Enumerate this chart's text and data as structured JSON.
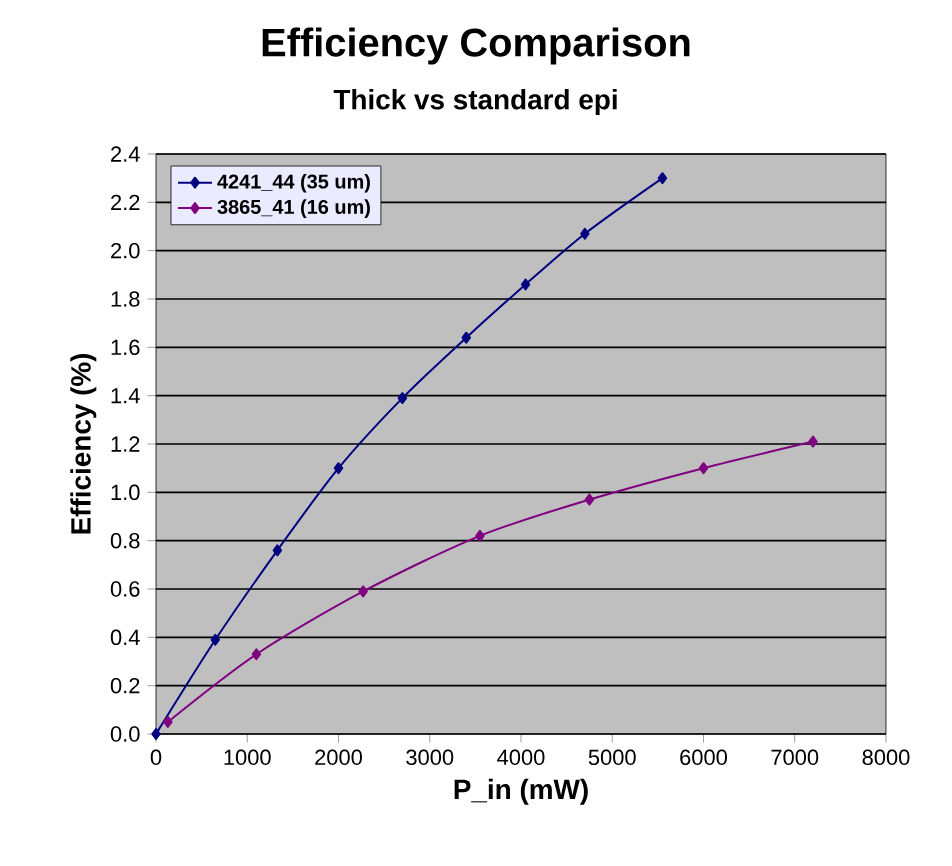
{
  "chart_data": {
    "type": "line",
    "title": "Efficiency Comparison",
    "subtitle": "Thick vs standard epi",
    "xlabel": "P_in (mW)",
    "ylabel": "Efficiency (%)",
    "xlim": [
      0,
      8000
    ],
    "xticks": [
      0,
      1000,
      2000,
      3000,
      4000,
      5000,
      6000,
      7000,
      8000
    ],
    "ylim": [
      0,
      2.4
    ],
    "yticks": [
      {
        "value": 0,
        "label": "0.0"
      },
      0.2,
      0.4,
      0.6,
      0.8,
      {
        "value": 1,
        "label": "1.0"
      },
      1.2,
      1.4,
      1.6,
      1.8,
      {
        "value": 2,
        "label": "2.0"
      },
      2.2,
      2.4
    ],
    "grid": "y",
    "legend": "top left",
    "marker": "diamond",
    "line_style": "solid",
    "series": [
      {
        "name": "4241_44 (35 um)",
        "color": "#000080",
        "x": [
          0,
          650,
          1330,
          2000,
          2700,
          3400,
          4050,
          4700,
          5550
        ],
        "values": [
          0,
          0.39,
          0.76,
          1.1,
          1.39,
          1.64,
          1.86,
          2.07,
          2.3
        ]
      },
      {
        "name": "3865_41 (16 um)",
        "color": "#800080",
        "x": [
          130,
          1100,
          2270,
          3550,
          4750,
          6000,
          7200
        ],
        "values": [
          0.05,
          0.33,
          0.59,
          0.82,
          0.97,
          1.1,
          1.21
        ]
      }
    ]
  }
}
